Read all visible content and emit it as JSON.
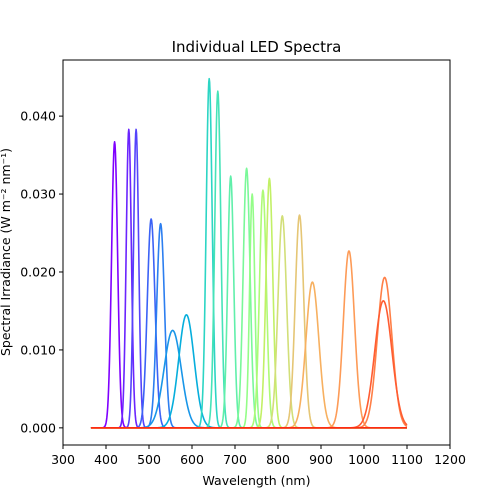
{
  "chart_data": {
    "type": "line",
    "title": "Individual LED Spectra",
    "xlabel": "Wavelength (nm)",
    "ylabel": "Spectral Irradiance (W m⁻² nm⁻¹)",
    "xlim": [
      300,
      1200
    ],
    "ylim": [
      -0.0022,
      0.0472
    ],
    "xticks": [
      300,
      400,
      500,
      600,
      700,
      800,
      900,
      1000,
      1100,
      1200
    ],
    "yticks": [
      0.0,
      0.01,
      0.02,
      0.03,
      0.04
    ],
    "ytick_labels": [
      "0.000",
      "0.010",
      "0.020",
      "0.030",
      "0.040"
    ],
    "grid": false,
    "legend": "none",
    "x_range": [
      365,
      1100
    ],
    "series": [
      {
        "peak_nm": 420,
        "peak_value": 0.0367,
        "width_nm": 7,
        "color": "#7f00ff"
      },
      {
        "peak_nm": 453,
        "peak_value": 0.0383,
        "width_nm": 6,
        "color": "#6a24fe"
      },
      {
        "peak_nm": 470,
        "peak_value": 0.0383,
        "width_nm": 6,
        "color": "#5543fb"
      },
      {
        "peak_nm": 505,
        "peak_value": 0.0268,
        "width_nm": 9,
        "color": "#3b62f6"
      },
      {
        "peak_nm": 527,
        "peak_value": 0.0262,
        "width_nm": 9,
        "color": "#2c7ef0"
      },
      {
        "peak_nm": 555,
        "peak_value": 0.0125,
        "width_nm": 20,
        "color": "#1996e8"
      },
      {
        "peak_nm": 587,
        "peak_value": 0.0145,
        "width_nm": 18,
        "color": "#06aedc"
      },
      {
        "peak_nm": 640,
        "peak_value": 0.0448,
        "width_nm": 7,
        "color": "#2cd5c4"
      },
      {
        "peak_nm": 660,
        "peak_value": 0.0432,
        "width_nm": 7,
        "color": "#46e3b8"
      },
      {
        "peak_nm": 690,
        "peak_value": 0.0323,
        "width_nm": 7,
        "color": "#60efaa"
      },
      {
        "peak_nm": 727,
        "peak_value": 0.0333,
        "width_nm": 8,
        "color": "#7af899"
      },
      {
        "peak_nm": 740,
        "peak_value": 0.03,
        "width_nm": 6,
        "color": "#94fd88"
      },
      {
        "peak_nm": 765,
        "peak_value": 0.0305,
        "width_nm": 8,
        "color": "#aefa76"
      },
      {
        "peak_nm": 780,
        "peak_value": 0.032,
        "width_nm": 8,
        "color": "#c2f066"
      },
      {
        "peak_nm": 810,
        "peak_value": 0.0272,
        "width_nm": 10,
        "color": "#d2df78"
      },
      {
        "peak_nm": 850,
        "peak_value": 0.0273,
        "width_nm": 10,
        "color": "#e5c675"
      },
      {
        "peak_nm": 880,
        "peak_value": 0.0187,
        "width_nm": 15,
        "color": "#f7b060"
      },
      {
        "peak_nm": 965,
        "peak_value": 0.0227,
        "width_nm": 13,
        "color": "#fd9b57"
      },
      {
        "peak_nm": 1048,
        "peak_value": 0.0193,
        "width_nm": 17,
        "color": "#ff7f47"
      },
      {
        "peak_nm": 1045,
        "peak_value": 0.0163,
        "width_nm": 20,
        "color": "#ff5c31"
      },
      {
        "peak_nm": 1100,
        "peak_value": 0.0,
        "width_nm": 1,
        "color": "#ff2a14"
      }
    ]
  }
}
